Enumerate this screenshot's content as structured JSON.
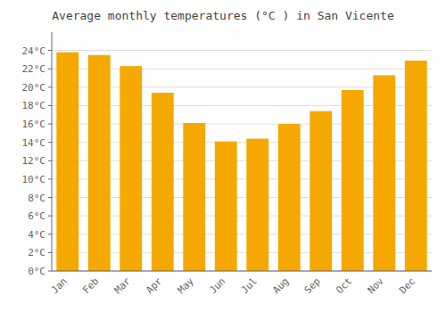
{
  "chart_data": {
    "type": "bar",
    "title": "Average monthly temperatures (°C ) in San Vicente",
    "categories": [
      "Jan",
      "Feb",
      "Mar",
      "Apr",
      "May",
      "Jun",
      "Jul",
      "Aug",
      "Sep",
      "Oct",
      "Nov",
      "Dec"
    ],
    "values": [
      23.8,
      23.5,
      22.3,
      19.4,
      16.1,
      14.1,
      14.4,
      16.0,
      17.4,
      19.7,
      21.3,
      22.9
    ],
    "color": "#F5A800",
    "ylim": [
      0,
      26
    ],
    "yticks": [
      {
        "value": 0,
        "label": "0°C"
      },
      {
        "value": 2,
        "label": "2°C"
      },
      {
        "value": 4,
        "label": "4°C"
      },
      {
        "value": 6,
        "label": "6°C"
      },
      {
        "value": 8,
        "label": "8°C"
      },
      {
        "value": 10,
        "label": "10°C"
      },
      {
        "value": 12,
        "label": "12°C"
      },
      {
        "value": 14,
        "label": "14°C"
      },
      {
        "value": 16,
        "label": "16°C"
      },
      {
        "value": 18,
        "label": "18°C"
      },
      {
        "value": 20,
        "label": "20°C"
      },
      {
        "value": 22,
        "label": "22°C"
      },
      {
        "value": 24,
        "label": "24°C"
      }
    ],
    "grid": true
  }
}
